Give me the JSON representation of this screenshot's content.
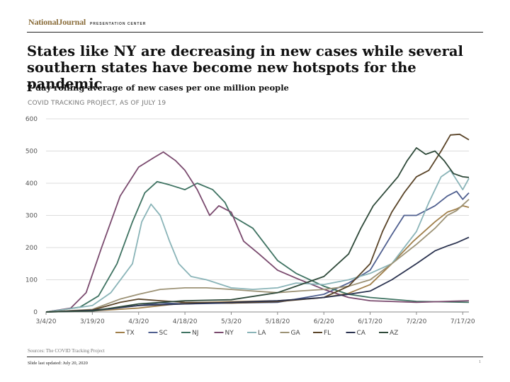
{
  "header": {
    "brand_name": "NationalJournal",
    "brand_sub": "PRESENTATION CENTER"
  },
  "title": "States like NY are decreasing in new cases while several southern states have become new hotspots for the pandemic",
  "subtitle": "7 day rolling average of new cases per one million people",
  "source_note": "COVID TRACKING PROJECT, AS OF JULY 19",
  "footer": {
    "sources": "Sources: The COVID Tracking Project",
    "updated": "Slide last updated: July 20, 2020",
    "page_number": "1"
  },
  "chart_data": {
    "type": "line",
    "title": "",
    "xlabel": "",
    "ylabel": "",
    "x_range": [
      "2020-03-04",
      "2020-07-19"
    ],
    "x_ticks": [
      "3/4/20",
      "3/19/20",
      "4/3/20",
      "4/18/20",
      "5/3/20",
      "5/18/20",
      "6/2/20",
      "6/17/20",
      "7/2/20",
      "7/17/20"
    ],
    "ylim": [
      0,
      600
    ],
    "y_ticks": [
      0,
      100,
      200,
      300,
      400,
      500,
      600
    ],
    "grid": true,
    "legend_position": "bottom",
    "series": [
      {
        "name": "TX",
        "color": "#a07f4a",
        "points": [
          [
            "3/4/20",
            0
          ],
          [
            "3/19/20",
            3
          ],
          [
            "4/3/20",
            12
          ],
          [
            "4/18/20",
            28
          ],
          [
            "5/3/20",
            32
          ],
          [
            "5/18/20",
            35
          ],
          [
            "5/30/20",
            42
          ],
          [
            "6/2/20",
            45
          ],
          [
            "6/10/20",
            58
          ],
          [
            "6/17/20",
            85
          ],
          [
            "6/24/20",
            150
          ],
          [
            "7/1/20",
            220
          ],
          [
            "7/8/20",
            280
          ],
          [
            "7/12/20",
            310
          ],
          [
            "7/15/20",
            320
          ],
          [
            "7/17/20",
            330
          ],
          [
            "7/19/20",
            325
          ]
        ]
      },
      {
        "name": "SC",
        "color": "#4f5f8f",
        "points": [
          [
            "3/4/20",
            0
          ],
          [
            "3/19/20",
            3
          ],
          [
            "4/3/20",
            20
          ],
          [
            "4/10/20",
            28
          ],
          [
            "4/18/20",
            25
          ],
          [
            "5/3/20",
            28
          ],
          [
            "5/18/20",
            30
          ],
          [
            "6/2/20",
            55
          ],
          [
            "6/10/20",
            90
          ],
          [
            "6/17/20",
            130
          ],
          [
            "6/24/20",
            240
          ],
          [
            "6/28/20",
            300
          ],
          [
            "7/2/20",
            300
          ],
          [
            "7/8/20",
            330
          ],
          [
            "7/12/20",
            360
          ],
          [
            "7/15/20",
            375
          ],
          [
            "7/17/20",
            350
          ],
          [
            "7/19/20",
            370
          ]
        ]
      },
      {
        "name": "NJ",
        "color": "#3f7362",
        "points": [
          [
            "3/4/20",
            0
          ],
          [
            "3/15/20",
            15
          ],
          [
            "3/21/20",
            50
          ],
          [
            "3/27/20",
            150
          ],
          [
            "4/1/20",
            280
          ],
          [
            "4/5/20",
            370
          ],
          [
            "4/9/20",
            405
          ],
          [
            "4/13/20",
            395
          ],
          [
            "4/18/20",
            380
          ],
          [
            "4/22/20",
            400
          ],
          [
            "4/27/20",
            380
          ],
          [
            "5/1/20",
            340
          ],
          [
            "5/3/20",
            300
          ],
          [
            "5/10/20",
            260
          ],
          [
            "5/18/20",
            160
          ],
          [
            "5/24/20",
            120
          ],
          [
            "6/2/20",
            80
          ],
          [
            "6/10/20",
            55
          ],
          [
            "6/17/20",
            45
          ],
          [
            "7/2/20",
            33
          ],
          [
            "7/19/20",
            30
          ]
        ]
      },
      {
        "name": "NY",
        "color": "#7a4a6e",
        "points": [
          [
            "3/4/20",
            0
          ],
          [
            "3/12/20",
            12
          ],
          [
            "3/17/20",
            60
          ],
          [
            "3/22/20",
            200
          ],
          [
            "3/28/20",
            360
          ],
          [
            "4/3/20",
            450
          ],
          [
            "4/8/20",
            480
          ],
          [
            "4/11/20",
            497
          ],
          [
            "4/15/20",
            470
          ],
          [
            "4/18/20",
            440
          ],
          [
            "4/22/20",
            380
          ],
          [
            "4/26/20",
            300
          ],
          [
            "4/29/20",
            330
          ],
          [
            "5/3/20",
            310
          ],
          [
            "5/7/20",
            220
          ],
          [
            "5/12/20",
            180
          ],
          [
            "5/18/20",
            130
          ],
          [
            "5/24/20",
            105
          ],
          [
            "6/2/20",
            70
          ],
          [
            "6/10/20",
            45
          ],
          [
            "6/17/20",
            35
          ],
          [
            "7/2/20",
            30
          ],
          [
            "7/19/20",
            35
          ]
        ]
      },
      {
        "name": "LA",
        "color": "#8ab4b8",
        "points": [
          [
            "3/4/20",
            0
          ],
          [
            "3/19/20",
            20
          ],
          [
            "3/25/20",
            60
          ],
          [
            "4/1/20",
            150
          ],
          [
            "4/4/20",
            280
          ],
          [
            "4/7/20",
            335
          ],
          [
            "4/10/20",
            300
          ],
          [
            "4/13/20",
            220
          ],
          [
            "4/16/20",
            150
          ],
          [
            "4/20/20",
            110
          ],
          [
            "4/25/20",
            100
          ],
          [
            "5/3/20",
            75
          ],
          [
            "5/10/20",
            70
          ],
          [
            "5/18/20",
            75
          ],
          [
            "5/24/20",
            90
          ],
          [
            "6/2/20",
            85
          ],
          [
            "6/10/20",
            100
          ],
          [
            "6/17/20",
            120
          ],
          [
            "6/24/20",
            150
          ],
          [
            "7/2/20",
            250
          ],
          [
            "7/6/20",
            340
          ],
          [
            "7/10/20",
            420
          ],
          [
            "7/13/20",
            440
          ],
          [
            "7/15/20",
            410
          ],
          [
            "7/17/20",
            380
          ],
          [
            "7/19/20",
            415
          ]
        ]
      },
      {
        "name": "GA",
        "color": "#9c9275",
        "points": [
          [
            "3/4/20",
            0
          ],
          [
            "3/19/20",
            8
          ],
          [
            "3/28/20",
            40
          ],
          [
            "4/3/20",
            55
          ],
          [
            "4/10/20",
            70
          ],
          [
            "4/18/20",
            75
          ],
          [
            "4/25/20",
            75
          ],
          [
            "5/3/20",
            70
          ],
          [
            "5/10/20",
            65
          ],
          [
            "5/18/20",
            60
          ],
          [
            "5/25/20",
            65
          ],
          [
            "6/2/20",
            70
          ],
          [
            "6/10/20",
            80
          ],
          [
            "6/17/20",
            100
          ],
          [
            "6/24/20",
            150
          ],
          [
            "7/2/20",
            210
          ],
          [
            "7/8/20",
            260
          ],
          [
            "7/12/20",
            300
          ],
          [
            "7/15/20",
            315
          ],
          [
            "7/19/20",
            350
          ]
        ]
      },
      {
        "name": "FL",
        "color": "#5a4428",
        "points": [
          [
            "3/4/20",
            0
          ],
          [
            "3/19/20",
            6
          ],
          [
            "3/28/20",
            30
          ],
          [
            "4/3/20",
            40
          ],
          [
            "4/10/20",
            35
          ],
          [
            "4/18/20",
            30
          ],
          [
            "5/3/20",
            28
          ],
          [
            "5/18/20",
            32
          ],
          [
            "6/2/20",
            45
          ],
          [
            "6/10/20",
            80
          ],
          [
            "6/17/20",
            150
          ],
          [
            "6/21/20",
            250
          ],
          [
            "6/24/20",
            310
          ],
          [
            "6/28/20",
            370
          ],
          [
            "7/2/20",
            420
          ],
          [
            "7/6/20",
            440
          ],
          [
            "7/10/20",
            500
          ],
          [
            "7/13/20",
            550
          ],
          [
            "7/16/20",
            552
          ],
          [
            "7/19/20",
            535
          ]
        ]
      },
      {
        "name": "CA",
        "color": "#2b3350",
        "points": [
          [
            "3/4/20",
            0
          ],
          [
            "3/19/20",
            5
          ],
          [
            "4/3/20",
            20
          ],
          [
            "4/18/20",
            25
          ],
          [
            "5/3/20",
            30
          ],
          [
            "5/18/20",
            35
          ],
          [
            "6/2/20",
            45
          ],
          [
            "6/10/20",
            55
          ],
          [
            "6/17/20",
            65
          ],
          [
            "6/24/20",
            100
          ],
          [
            "7/2/20",
            150
          ],
          [
            "7/8/20",
            190
          ],
          [
            "7/12/20",
            205
          ],
          [
            "7/15/20",
            215
          ],
          [
            "7/19/20",
            232
          ]
        ]
      },
      {
        "name": "AZ",
        "color": "#2f4a3a",
        "points": [
          [
            "3/4/20",
            0
          ],
          [
            "3/19/20",
            3
          ],
          [
            "4/3/20",
            25
          ],
          [
            "4/18/20",
            35
          ],
          [
            "5/3/20",
            38
          ],
          [
            "5/18/20",
            60
          ],
          [
            "5/24/20",
            80
          ],
          [
            "6/2/20",
            110
          ],
          [
            "6/10/20",
            180
          ],
          [
            "6/14/20",
            260
          ],
          [
            "6/18/20",
            330
          ],
          [
            "6/22/20",
            375
          ],
          [
            "6/26/20",
            420
          ],
          [
            "6/29/20",
            470
          ],
          [
            "7/2/20",
            510
          ],
          [
            "7/5/20",
            490
          ],
          [
            "7/8/20",
            500
          ],
          [
            "7/11/20",
            470
          ],
          [
            "7/14/20",
            430
          ],
          [
            "7/17/20",
            420
          ],
          [
            "7/19/20",
            418
          ]
        ]
      }
    ]
  }
}
